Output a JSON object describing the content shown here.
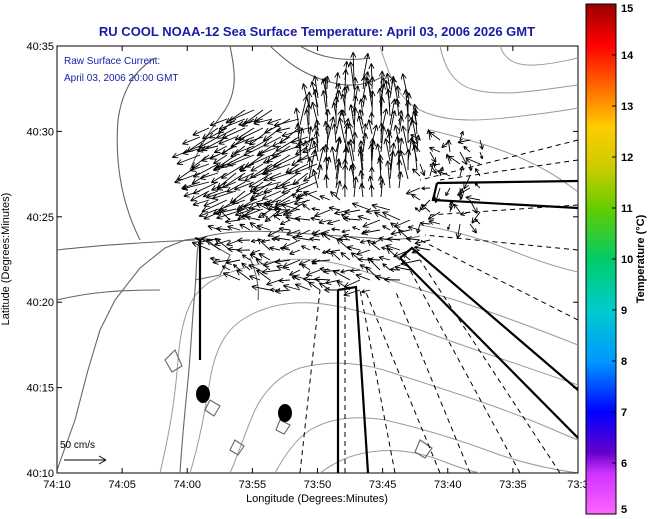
{
  "title": "RU COOL  NOAA-12  Sea Surface Temperature:  April 03, 2006 2026 GMT",
  "colors": {
    "title": "#1a1aa6",
    "annotation": "#1a1aa6",
    "land_contour": "#666666",
    "grid_contour": "#999999",
    "arrow": "#000000"
  },
  "chart_data": {
    "type": "map",
    "xlabel": "Longitude (Degrees:Minutes)",
    "ylabel": "Latitude (Degrees:Minutes)",
    "x_ticks": [
      "74:10",
      "74:05",
      "74:00",
      "73:55",
      "73:50",
      "73:45",
      "73:40",
      "73:35",
      "73:3"
    ],
    "y_ticks": [
      "40:35",
      "40:30",
      "40:25",
      "40:20",
      "40:15",
      "40:10"
    ],
    "xlim": [
      "74:10",
      "73:30"
    ],
    "ylim": [
      "40:10",
      "40:35"
    ],
    "annotation": [
      "Raw Surface Current:",
      "April 03, 2006 20:00 GMT"
    ],
    "scale_label": "50 cm/s",
    "colorbar": {
      "label": "Temperature (°C)",
      "min": 5,
      "max": 15,
      "ticks": [
        "15",
        "14",
        "13",
        "12",
        "11",
        "10",
        "9",
        "8",
        "7",
        "6",
        "5"
      ],
      "colormap": [
        "#ff66ff",
        "#6600cc",
        "#0000ff",
        "#0099ff",
        "#00cccc",
        "#00cc66",
        "#66cc00",
        "#cccc00",
        "#ffcc00",
        "#ff6600",
        "#ff0000",
        "#990000"
      ]
    }
  }
}
